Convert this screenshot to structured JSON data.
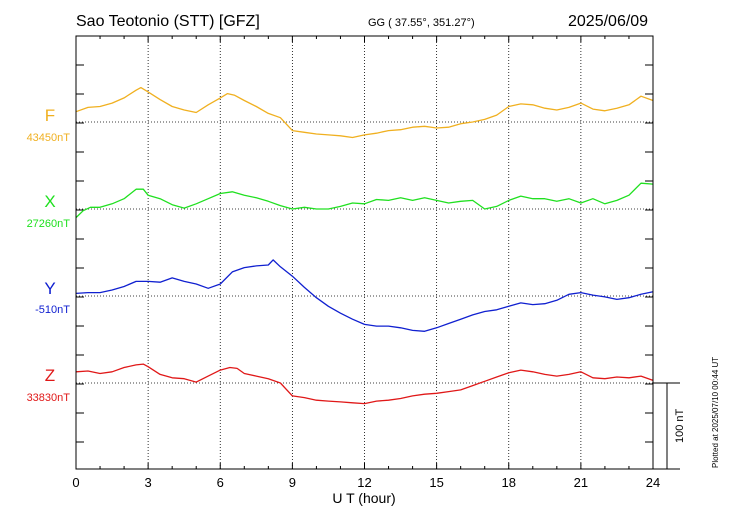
{
  "header": {
    "station": "Sao Teotonio (STT)  [GFZ]",
    "coords": "GG ( 37.55°, 351.27°)",
    "date": "2025/06/09"
  },
  "footer": {
    "xlabel": "U T (hour)",
    "plotted": "Plotted at 2025/07/10 00:44 UT",
    "scale_label": "100 nT"
  },
  "chart_data": {
    "type": "line",
    "xlabel": "U T (hour)",
    "xlim": [
      0,
      24
    ],
    "xticks": [
      0,
      3,
      6,
      9,
      12,
      15,
      18,
      21,
      24
    ],
    "grid": true,
    "scale_bar_nT": 100,
    "series": [
      {
        "name": "F",
        "baseline_label": "43450nT",
        "baseline": 43450,
        "color": "#f0b020",
        "points": [
          [
            0,
            43462
          ],
          [
            0.5,
            43467
          ],
          [
            1,
            43468
          ],
          [
            1.5,
            43472
          ],
          [
            2,
            43478
          ],
          [
            2.5,
            43487
          ],
          [
            2.7,
            43490
          ],
          [
            3,
            43485
          ],
          [
            3.5,
            43476
          ],
          [
            4,
            43468
          ],
          [
            4.5,
            43464
          ],
          [
            5,
            43461
          ],
          [
            5.5,
            43470
          ],
          [
            6,
            43478
          ],
          [
            6.3,
            43483
          ],
          [
            6.6,
            43481
          ],
          [
            7,
            43475
          ],
          [
            7.5,
            43468
          ],
          [
            8,
            43460
          ],
          [
            8.5,
            43455
          ],
          [
            9,
            43440
          ],
          [
            9.5,
            43438
          ],
          [
            10,
            43436
          ],
          [
            10.5,
            43435
          ],
          [
            11,
            43434
          ],
          [
            11.5,
            43432
          ],
          [
            12,
            43435
          ],
          [
            12.5,
            43437
          ],
          [
            13,
            43440
          ],
          [
            13.5,
            43441
          ],
          [
            14,
            43444
          ],
          [
            14.5,
            43445
          ],
          [
            15,
            43443
          ],
          [
            15.5,
            43444
          ],
          [
            16,
            43448
          ],
          [
            16.5,
            43450
          ],
          [
            17,
            43453
          ],
          [
            17.5,
            43458
          ],
          [
            18,
            43468
          ],
          [
            18.5,
            43471
          ],
          [
            19,
            43470
          ],
          [
            19.5,
            43466
          ],
          [
            20,
            43464
          ],
          [
            20.5,
            43467
          ],
          [
            21,
            43472
          ],
          [
            21.5,
            43465
          ],
          [
            22,
            43463
          ],
          [
            22.5,
            43466
          ],
          [
            23,
            43470
          ],
          [
            23.5,
            43480
          ],
          [
            24,
            43475
          ]
        ]
      },
      {
        "name": "X",
        "baseline_label": "27260nT",
        "baseline": 27260,
        "color": "#20e020",
        "points": [
          [
            0,
            27250
          ],
          [
            0.3,
            27258
          ],
          [
            0.6,
            27262
          ],
          [
            1,
            27262
          ],
          [
            1.5,
            27266
          ],
          [
            2,
            27272
          ],
          [
            2.5,
            27283
          ],
          [
            2.8,
            27283
          ],
          [
            3,
            27276
          ],
          [
            3.5,
            27272
          ],
          [
            4,
            27265
          ],
          [
            4.5,
            27261
          ],
          [
            5,
            27266
          ],
          [
            5.5,
            27272
          ],
          [
            6,
            27278
          ],
          [
            6.5,
            27280
          ],
          [
            7,
            27276
          ],
          [
            7.5,
            27273
          ],
          [
            8,
            27269
          ],
          [
            8.5,
            27264
          ],
          [
            9,
            27260
          ],
          [
            9.5,
            27262
          ],
          [
            10,
            27260
          ],
          [
            10.5,
            27260
          ],
          [
            11,
            27263
          ],
          [
            11.5,
            27267
          ],
          [
            12,
            27266
          ],
          [
            12.5,
            27271
          ],
          [
            13,
            27270
          ],
          [
            13.5,
            27273
          ],
          [
            14,
            27270
          ],
          [
            14.5,
            27273
          ],
          [
            15,
            27270
          ],
          [
            15.5,
            27267
          ],
          [
            16,
            27269
          ],
          [
            16.5,
            27270
          ],
          [
            17,
            27260
          ],
          [
            17.5,
            27263
          ],
          [
            18,
            27270
          ],
          [
            18.5,
            27275
          ],
          [
            19,
            27272
          ],
          [
            19.5,
            27272
          ],
          [
            20,
            27269
          ],
          [
            20.5,
            27272
          ],
          [
            21,
            27267
          ],
          [
            21.5,
            27272
          ],
          [
            22,
            27266
          ],
          [
            22.5,
            27270
          ],
          [
            23,
            27276
          ],
          [
            23.5,
            27290
          ],
          [
            24,
            27289
          ]
        ]
      },
      {
        "name": "Y",
        "baseline_label": "-510nT",
        "baseline": -510,
        "color": "#1020d0",
        "points": [
          [
            0,
            -507
          ],
          [
            0.5,
            -506
          ],
          [
            1,
            -506
          ],
          [
            1.5,
            -503
          ],
          [
            2,
            -499
          ],
          [
            2.5,
            -493
          ],
          [
            3,
            -493
          ],
          [
            3.5,
            -494
          ],
          [
            4,
            -489
          ],
          [
            4.5,
            -493
          ],
          [
            5,
            -496
          ],
          [
            5.5,
            -501
          ],
          [
            6,
            -496
          ],
          [
            6.5,
            -482
          ],
          [
            7,
            -477
          ],
          [
            7.5,
            -475
          ],
          [
            8,
            -474
          ],
          [
            8.2,
            -468
          ],
          [
            8.5,
            -476
          ],
          [
            9,
            -487
          ],
          [
            9.5,
            -500
          ],
          [
            10,
            -512
          ],
          [
            10.5,
            -522
          ],
          [
            11,
            -530
          ],
          [
            11.5,
            -537
          ],
          [
            12,
            -543
          ],
          [
            12.5,
            -545
          ],
          [
            13,
            -545
          ],
          [
            13.5,
            -547
          ],
          [
            14,
            -550
          ],
          [
            14.5,
            -551
          ],
          [
            15,
            -547
          ],
          [
            15.5,
            -542
          ],
          [
            16,
            -537
          ],
          [
            16.5,
            -532
          ],
          [
            17,
            -528
          ],
          [
            17.5,
            -526
          ],
          [
            18,
            -522
          ],
          [
            18.5,
            -518
          ],
          [
            19,
            -520
          ],
          [
            19.5,
            -519
          ],
          [
            20,
            -515
          ],
          [
            20.5,
            -508
          ],
          [
            21,
            -506
          ],
          [
            21.5,
            -509
          ],
          [
            22,
            -511
          ],
          [
            22.5,
            -514
          ],
          [
            23,
            -512
          ],
          [
            23.5,
            -508
          ],
          [
            24,
            -505
          ]
        ]
      },
      {
        "name": "Z",
        "baseline_label": "33830nT",
        "baseline": 33830,
        "color": "#e01818",
        "points": [
          [
            0,
            33843
          ],
          [
            0.5,
            33844
          ],
          [
            1,
            33841
          ],
          [
            1.5,
            33843
          ],
          [
            2,
            33848
          ],
          [
            2.5,
            33851
          ],
          [
            2.8,
            33852
          ],
          [
            3,
            33849
          ],
          [
            3.5,
            33840
          ],
          [
            4,
            33836
          ],
          [
            4.5,
            33835
          ],
          [
            5,
            33831
          ],
          [
            5.5,
            33838
          ],
          [
            6,
            33845
          ],
          [
            6.4,
            33848
          ],
          [
            6.7,
            33847
          ],
          [
            7,
            33841
          ],
          [
            7.5,
            33838
          ],
          [
            8,
            33835
          ],
          [
            8.5,
            33830
          ],
          [
            9,
            33815
          ],
          [
            9.5,
            33813
          ],
          [
            10,
            33810
          ],
          [
            10.5,
            33809
          ],
          [
            11,
            33808
          ],
          [
            11.5,
            33807
          ],
          [
            12,
            33806
          ],
          [
            12.5,
            33809
          ],
          [
            13,
            33810
          ],
          [
            13.5,
            33812
          ],
          [
            14,
            33815
          ],
          [
            14.5,
            33817
          ],
          [
            15,
            33818
          ],
          [
            15.5,
            33820
          ],
          [
            16,
            33822
          ],
          [
            16.5,
            33827
          ],
          [
            17,
            33832
          ],
          [
            17.5,
            33837
          ],
          [
            18,
            33842
          ],
          [
            18.5,
            33845
          ],
          [
            19,
            33843
          ],
          [
            19.5,
            33840
          ],
          [
            20,
            33838
          ],
          [
            20.5,
            33840
          ],
          [
            21,
            33843
          ],
          [
            21.5,
            33836
          ],
          [
            22,
            33835
          ],
          [
            22.5,
            33837
          ],
          [
            23,
            33836
          ],
          [
            23.5,
            33838
          ],
          [
            24,
            33833
          ]
        ]
      }
    ]
  }
}
